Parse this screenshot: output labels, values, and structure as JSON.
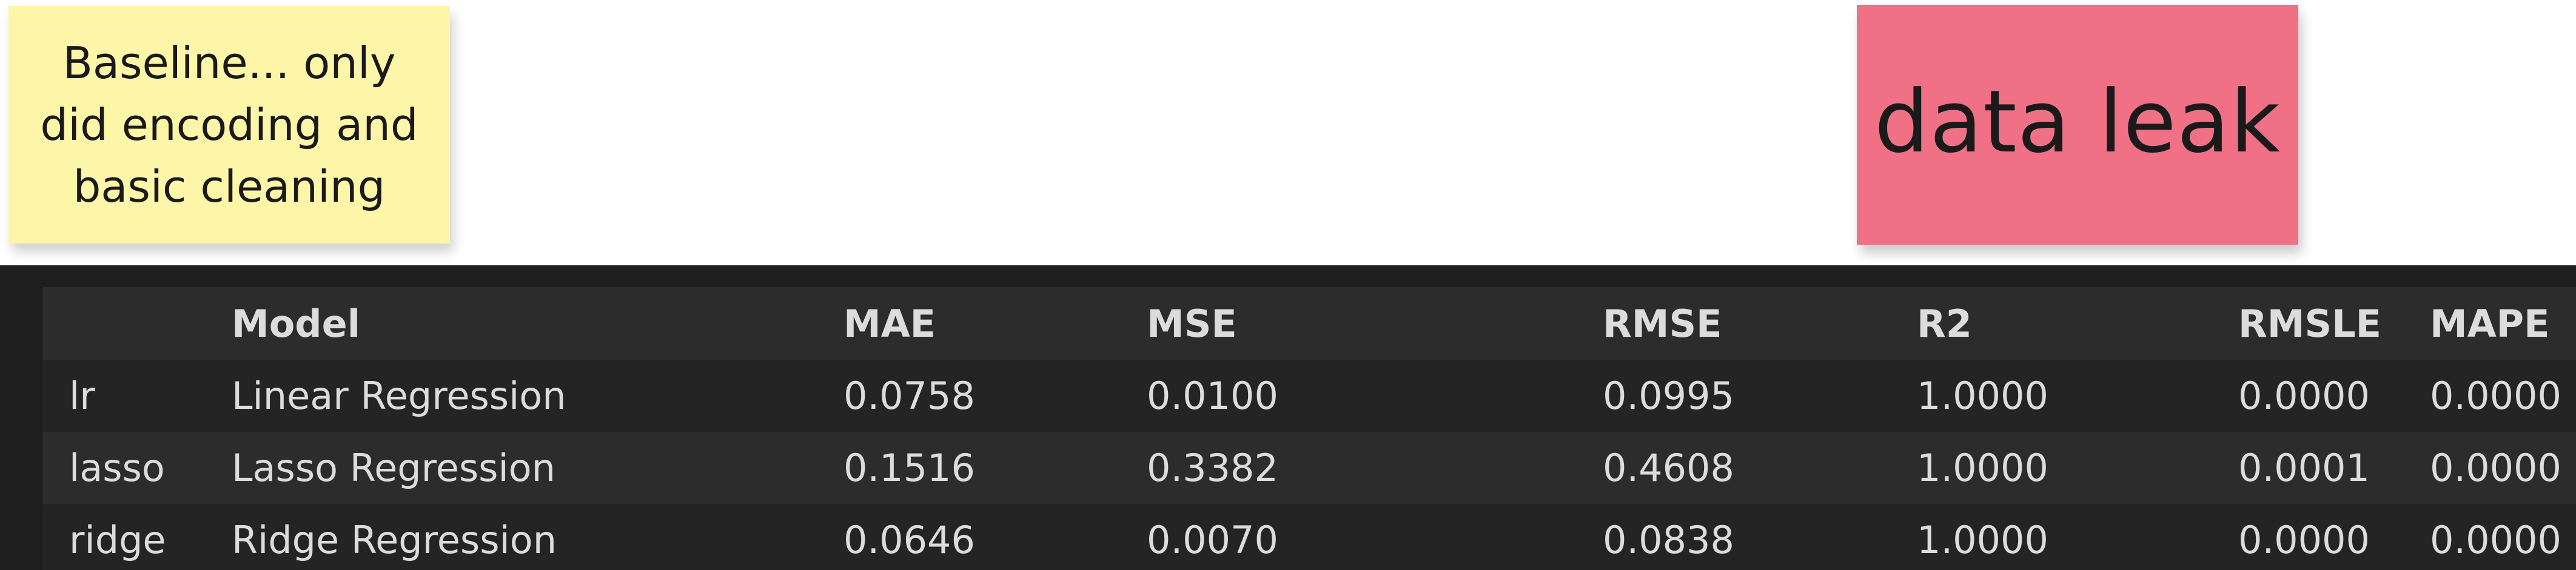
{
  "notes": {
    "yellow": {
      "lines": [
        "Baseline... only",
        "did encoding and",
        "basic cleaning"
      ],
      "color": "#fdf6a8"
    },
    "pink": {
      "text": "data leak",
      "color": "#f07086"
    }
  },
  "table": {
    "columns": [
      "",
      "Model",
      "MAE",
      "MSE",
      "RMSE",
      "R2",
      "RMSLE",
      "MAPE"
    ],
    "rows": [
      [
        "lr",
        "Linear Regression",
        "0.0758",
        "0.0100",
        "0.0995",
        "1.0000",
        "0.0000",
        "0.0000"
      ],
      [
        "lasso",
        "Lasso Regression",
        "0.1516",
        "0.3382",
        "0.4608",
        "1.0000",
        "0.0001",
        "0.0000"
      ],
      [
        "ridge",
        "Ridge Regression",
        "0.0646",
        "0.0070",
        "0.0838",
        "1.0000",
        "0.0000",
        "0.0000"
      ]
    ],
    "colors": {
      "panel": "#1e1e1e",
      "header_row": "#2c2c2c",
      "text": "#dcdcdc"
    }
  }
}
